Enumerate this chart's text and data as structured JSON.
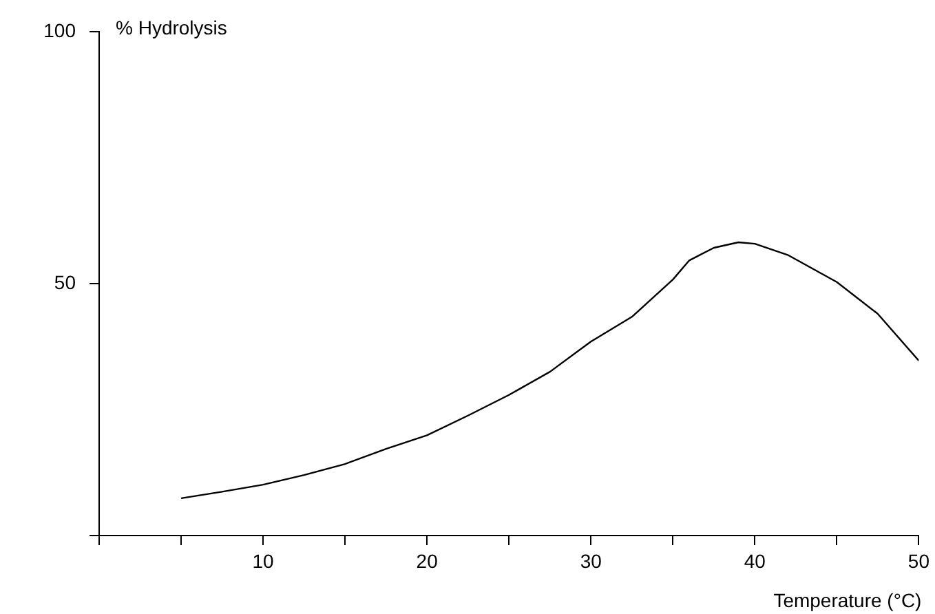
{
  "chart_data": {
    "type": "line",
    "xlabel": "Temperature (°C)",
    "ylabel": "% Hydrolysis",
    "x": [
      5,
      7.5,
      10,
      12.5,
      15,
      17.5,
      20,
      22.5,
      25,
      27.5,
      30,
      32.5,
      35,
      36,
      37.5,
      39,
      40,
      42,
      43.5,
      45,
      47.5,
      50
    ],
    "series": [
      {
        "color": "#000000",
        "values": [
          7.4,
          8.7,
          10.1,
          12,
          14.2,
          17.2,
          19.9,
          23.8,
          27.9,
          32.5,
          38.5,
          43.4,
          50.8,
          54.6,
          57.1,
          58.2,
          57.9,
          55.7,
          53,
          50.3,
          44,
          34.7
        ]
      }
    ],
    "xlim": [
      0,
      50
    ],
    "xticks": [
      {
        "value": 0,
        "label": null
      },
      {
        "value": 5,
        "label": null
      },
      10,
      {
        "value": 15,
        "label": null
      },
      20,
      {
        "value": 25,
        "label": null
      },
      30,
      {
        "value": 35,
        "label": null
      },
      40,
      {
        "value": 45,
        "label": null
      },
      50
    ],
    "ylim": [
      0,
      100
    ],
    "yticks": [
      {
        "value": 0,
        "label": null
      },
      50,
      100
    ],
    "grid": false,
    "legend": false,
    "marker": "none",
    "line_style": "solid"
  }
}
